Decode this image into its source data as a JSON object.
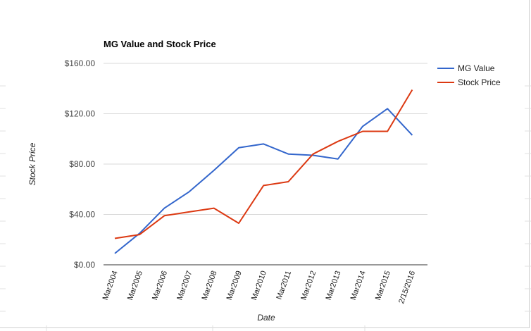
{
  "chart_data": {
    "type": "line",
    "title": "MG Value and Stock Price",
    "xlabel": "Date",
    "ylabel": "Stock Price",
    "categories": [
      "Mar2004",
      "Mar2005",
      "Mar2006",
      "Mar2007",
      "Mar2008",
      "Mar2009",
      "Mar2010",
      "Mar2011",
      "Mar2012",
      "Mar2013",
      "Mar2014",
      "Mar2015",
      "2/15/2016"
    ],
    "yticks": [
      "$0.00",
      "$40.00",
      "$80.00",
      "$120.00",
      "$160.00"
    ],
    "ylim": [
      0,
      160
    ],
    "grid": true,
    "legend_position": "right",
    "series": [
      {
        "name": "MG Value",
        "color": "#3366cc",
        "values": [
          9,
          25,
          45,
          58,
          75,
          93,
          96,
          88,
          87,
          84,
          110,
          124,
          103
        ]
      },
      {
        "name": "Stock Price",
        "color": "#dc3912",
        "values": [
          21,
          24,
          39,
          42,
          45,
          33,
          63,
          66,
          88,
          98,
          106,
          106,
          139
        ]
      }
    ]
  }
}
